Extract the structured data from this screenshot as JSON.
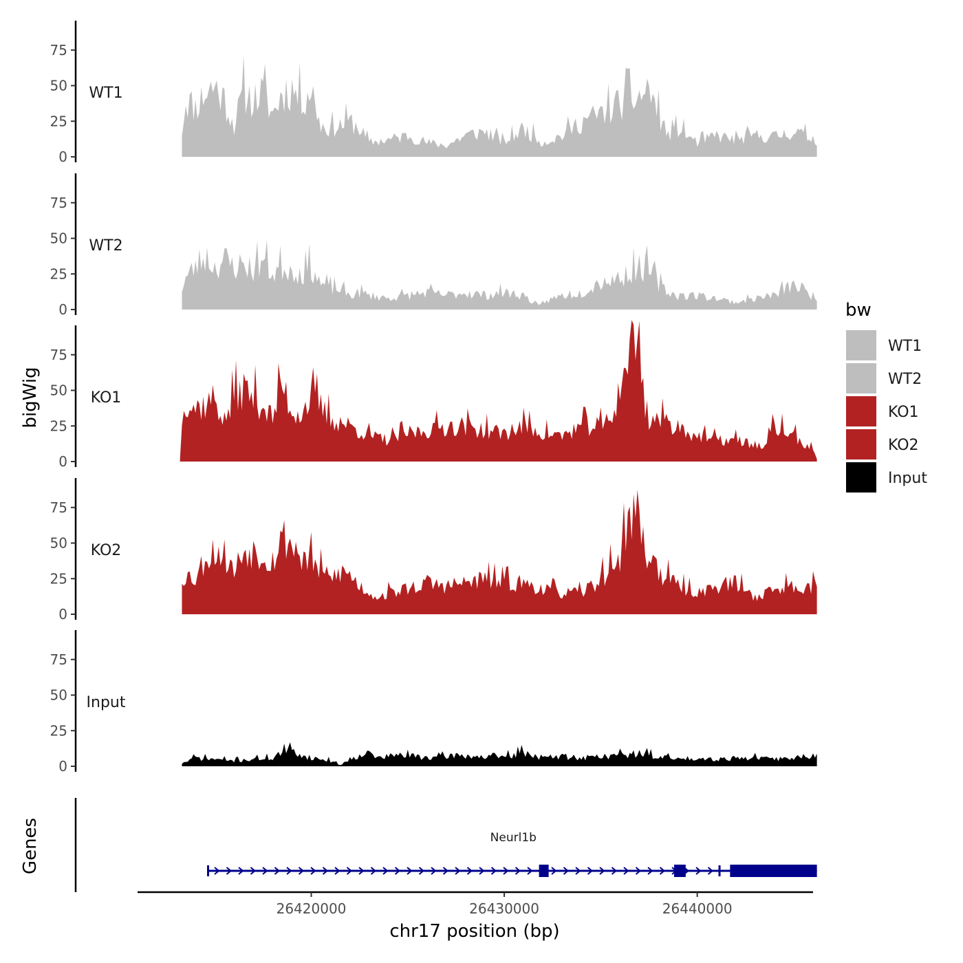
{
  "chart_data": {
    "type": "area",
    "xlabel": "chr17 position (bp)",
    "ylabel": "bigWig",
    "genes_label": "Genes",
    "xlim": [
      26411000,
      26446000
    ],
    "data_range": [
      26413300,
      26446200
    ],
    "ylim": [
      0,
      95
    ],
    "yticks": [
      0,
      25,
      50,
      75
    ],
    "xticks": [
      26420000,
      26430000,
      26440000
    ],
    "xtick_labels": [
      "26420000",
      "26430000",
      "26440000"
    ],
    "legend": {
      "title": "bw",
      "position": "right",
      "entries": [
        {
          "label": "WT1",
          "color": "#BEBEBE"
        },
        {
          "label": "WT2",
          "color": "#BEBEBE"
        },
        {
          "label": "KO1",
          "color": "#B22222"
        },
        {
          "label": "KO2",
          "color": "#B22222"
        },
        {
          "label": "Input",
          "color": "#000000"
        }
      ]
    },
    "tracks": [
      {
        "name": "WT1",
        "color": "#BEBEBE",
        "anchors": [
          [
            26413300,
            18
          ],
          [
            26413500,
            40
          ],
          [
            26414000,
            35
          ],
          [
            26414500,
            45
          ],
          [
            26415000,
            50
          ],
          [
            26415500,
            40
          ],
          [
            26416000,
            22
          ],
          [
            26416500,
            45
          ],
          [
            26417000,
            40
          ],
          [
            26417500,
            45
          ],
          [
            26418000,
            30
          ],
          [
            26418500,
            45
          ],
          [
            26419000,
            48
          ],
          [
            26419500,
            40
          ],
          [
            26420000,
            48
          ],
          [
            26420500,
            22
          ],
          [
            26421000,
            20
          ],
          [
            26421500,
            22
          ],
          [
            26422000,
            25
          ],
          [
            26422500,
            20
          ],
          [
            26423000,
            10
          ],
          [
            26424000,
            12
          ],
          [
            26425000,
            15
          ],
          [
            26426000,
            10
          ],
          [
            26427000,
            8
          ],
          [
            26428000,
            15
          ],
          [
            26429000,
            18
          ],
          [
            26430000,
            10
          ],
          [
            26431000,
            20
          ],
          [
            26432000,
            10
          ],
          [
            26433000,
            15
          ],
          [
            26434000,
            25
          ],
          [
            26435000,
            30
          ],
          [
            26436000,
            38
          ],
          [
            26437000,
            42
          ],
          [
            26437500,
            48
          ],
          [
            26438000,
            30
          ],
          [
            26438500,
            15
          ],
          [
            26439000,
            20
          ],
          [
            26440000,
            10
          ],
          [
            26441000,
            15
          ],
          [
            26442000,
            12
          ],
          [
            26443000,
            15
          ],
          [
            26444000,
            14
          ],
          [
            26445000,
            18
          ],
          [
            26446200,
            12
          ]
        ],
        "seed": 11,
        "noise": 0.35
      },
      {
        "name": "WT2",
        "color": "#BEBEBE",
        "anchors": [
          [
            26413300,
            15
          ],
          [
            26413500,
            22
          ],
          [
            26414000,
            30
          ],
          [
            26414500,
            38
          ],
          [
            26415000,
            30
          ],
          [
            26415500,
            35
          ],
          [
            26416000,
            30
          ],
          [
            26416500,
            32
          ],
          [
            26417000,
            28
          ],
          [
            26417500,
            35
          ],
          [
            26418000,
            25
          ],
          [
            26418500,
            30
          ],
          [
            26419000,
            28
          ],
          [
            26419500,
            25
          ],
          [
            26420000,
            30
          ],
          [
            26420500,
            18
          ],
          [
            26421000,
            15
          ],
          [
            26421500,
            14
          ],
          [
            26422000,
            10
          ],
          [
            26422500,
            12
          ],
          [
            26423000,
            10
          ],
          [
            26424000,
            8
          ],
          [
            26425000,
            10
          ],
          [
            26426000,
            12
          ],
          [
            26427000,
            10
          ],
          [
            26428000,
            12
          ],
          [
            26429000,
            10
          ],
          [
            26430000,
            12
          ],
          [
            26431000,
            10
          ],
          [
            26431800,
            2
          ],
          [
            26432000,
            5
          ],
          [
            26433000,
            10
          ],
          [
            26434000,
            12
          ],
          [
            26435000,
            20
          ],
          [
            26436000,
            22
          ],
          [
            26437000,
            30
          ],
          [
            26437500,
            28
          ],
          [
            26438000,
            18
          ],
          [
            26438500,
            12
          ],
          [
            26439000,
            10
          ],
          [
            26440000,
            10
          ],
          [
            26441000,
            8
          ],
          [
            26442000,
            5
          ],
          [
            26443000,
            8
          ],
          [
            26444000,
            10
          ],
          [
            26445000,
            18
          ],
          [
            26446200,
            8
          ]
        ],
        "seed": 23,
        "noise": 0.35
      },
      {
        "name": "KO1",
        "color": "#B22222",
        "anchors": [
          [
            26413200,
            2
          ],
          [
            26413400,
            45
          ],
          [
            26414000,
            38
          ],
          [
            26414500,
            40
          ],
          [
            26415000,
            45
          ],
          [
            26415500,
            28
          ],
          [
            26416000,
            45
          ],
          [
            26416500,
            52
          ],
          [
            26417000,
            45
          ],
          [
            26417500,
            40
          ],
          [
            26418000,
            30
          ],
          [
            26418500,
            55
          ],
          [
            26419000,
            35
          ],
          [
            26419500,
            35
          ],
          [
            26420000,
            45
          ],
          [
            26420500,
            38
          ],
          [
            26421000,
            30
          ],
          [
            26421500,
            28
          ],
          [
            26422000,
            25
          ],
          [
            26422500,
            22
          ],
          [
            26423000,
            18
          ],
          [
            26424000,
            15
          ],
          [
            26425000,
            20
          ],
          [
            26426000,
            22
          ],
          [
            26427000,
            25
          ],
          [
            26428000,
            25
          ],
          [
            26429000,
            22
          ],
          [
            26430000,
            20
          ],
          [
            26431000,
            25
          ],
          [
            26432000,
            20
          ],
          [
            26433000,
            18
          ],
          [
            26434000,
            25
          ],
          [
            26435000,
            25
          ],
          [
            26435500,
            30
          ],
          [
            26436000,
            50
          ],
          [
            26436500,
            82
          ],
          [
            26437000,
            85
          ],
          [
            26437300,
            40
          ],
          [
            26437500,
            30
          ],
          [
            26438000,
            30
          ],
          [
            26439000,
            25
          ],
          [
            26440000,
            18
          ],
          [
            26441000,
            15
          ],
          [
            26442000,
            15
          ],
          [
            26443000,
            12
          ],
          [
            26443500,
            10
          ],
          [
            26444000,
            25
          ],
          [
            26445000,
            18
          ],
          [
            26446000,
            8
          ],
          [
            26446200,
            2
          ]
        ],
        "seed": 37,
        "noise": 0.3
      },
      {
        "name": "KO2",
        "color": "#B22222",
        "anchors": [
          [
            26413300,
            25
          ],
          [
            26413500,
            28
          ],
          [
            26414000,
            25
          ],
          [
            26414500,
            40
          ],
          [
            26415000,
            45
          ],
          [
            26415500,
            42
          ],
          [
            26416000,
            30
          ],
          [
            26416500,
            45
          ],
          [
            26417000,
            45
          ],
          [
            26417500,
            42
          ],
          [
            26418000,
            38
          ],
          [
            26418500,
            55
          ],
          [
            26419000,
            50
          ],
          [
            26419500,
            40
          ],
          [
            26420000,
            38
          ],
          [
            26420500,
            30
          ],
          [
            26421000,
            25
          ],
          [
            26421500,
            30
          ],
          [
            26422000,
            28
          ],
          [
            26422500,
            20
          ],
          [
            26423000,
            15
          ],
          [
            26423500,
            12
          ],
          [
            26424000,
            15
          ],
          [
            26425000,
            18
          ],
          [
            26426000,
            22
          ],
          [
            26427000,
            20
          ],
          [
            26428000,
            22
          ],
          [
            26429000,
            25
          ],
          [
            26430000,
            22
          ],
          [
            26431000,
            22
          ],
          [
            26432000,
            18
          ],
          [
            26433000,
            15
          ],
          [
            26434000,
            15
          ],
          [
            26435000,
            25
          ],
          [
            26436000,
            40
          ],
          [
            26436500,
            70
          ],
          [
            26437000,
            72
          ],
          [
            26437300,
            40
          ],
          [
            26437500,
            45
          ],
          [
            26438000,
            30
          ],
          [
            26439000,
            20
          ],
          [
            26440000,
            15
          ],
          [
            26441000,
            20
          ],
          [
            26442000,
            22
          ],
          [
            26443000,
            12
          ],
          [
            26444000,
            18
          ],
          [
            26445000,
            20
          ],
          [
            26446200,
            20
          ]
        ],
        "seed": 53,
        "noise": 0.3
      },
      {
        "name": "Input",
        "color": "#000000",
        "anchors": [
          [
            26413300,
            2
          ],
          [
            26414000,
            6
          ],
          [
            26415000,
            5
          ],
          [
            26416000,
            4
          ],
          [
            26417000,
            5
          ],
          [
            26418000,
            6
          ],
          [
            26418500,
            10
          ],
          [
            26419000,
            11
          ],
          [
            26419500,
            8
          ],
          [
            26420000,
            6
          ],
          [
            26421000,
            4
          ],
          [
            26421500,
            1
          ],
          [
            26422000,
            5
          ],
          [
            26422800,
            10
          ],
          [
            26423500,
            6
          ],
          [
            26424500,
            8
          ],
          [
            26425500,
            7
          ],
          [
            26426500,
            6
          ],
          [
            26427500,
            8
          ],
          [
            26428500,
            7
          ],
          [
            26429500,
            6
          ],
          [
            26430500,
            8
          ],
          [
            26431000,
            10
          ],
          [
            26432000,
            6
          ],
          [
            26433000,
            7
          ],
          [
            26434000,
            6
          ],
          [
            26435000,
            7
          ],
          [
            26436000,
            8
          ],
          [
            26437000,
            9
          ],
          [
            26438000,
            7
          ],
          [
            26439000,
            5
          ],
          [
            26440000,
            6
          ],
          [
            26441000,
            5
          ],
          [
            26442000,
            6
          ],
          [
            26443000,
            6
          ],
          [
            26444000,
            5
          ],
          [
            26445000,
            6
          ],
          [
            26446200,
            8
          ]
        ],
        "seed": 71,
        "noise": 0.35
      }
    ],
    "gene": {
      "name": "Neurl1b",
      "start": 26414600,
      "end": 26446200,
      "strand": "+",
      "exons": [
        {
          "start": 26414600,
          "end": 26414700,
          "type": "utr"
        },
        {
          "start": 26431800,
          "end": 26432300,
          "type": "cds"
        },
        {
          "start": 26438800,
          "end": 26439400,
          "type": "cds"
        },
        {
          "start": 26441100,
          "end": 26441200,
          "type": "utr"
        },
        {
          "start": 26441700,
          "end": 26446200,
          "type": "cds"
        }
      ]
    }
  }
}
